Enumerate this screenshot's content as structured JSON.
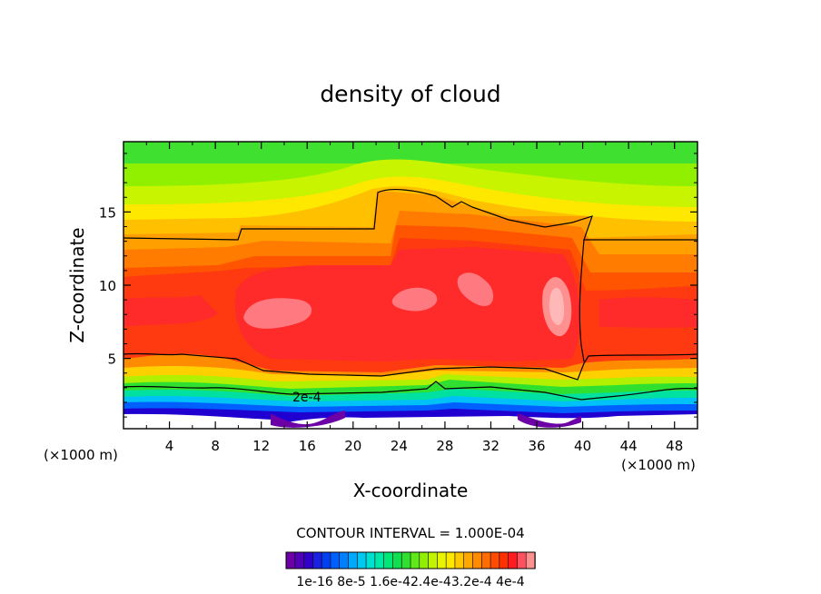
{
  "chart_data": {
    "type": "heatmap",
    "title": "density of cloud",
    "xlabel": "X-coordinate",
    "ylabel": "Z-coordinate",
    "x_unit_label": "(×1000 m)",
    "x_unit_label_right": "(×1000 m)",
    "xlim": [
      0,
      50
    ],
    "ylim": [
      0.2,
      19.8
    ],
    "x_ticks": [
      4,
      8,
      12,
      16,
      20,
      24,
      28,
      32,
      36,
      40,
      44,
      48
    ],
    "y_ticks": [
      5,
      10,
      15
    ],
    "contour_interval_text": "CONTOUR INTERVAL = 1.000E-04",
    "contour_line_label": "2e-4",
    "colorbar": {
      "tick_labels": [
        "1e-16",
        "8e-5",
        "1.6e-4",
        "2.4e-4",
        "3.2e-4",
        "4e-4"
      ],
      "label_text": "1e-16 8e-5 1.6e-42.4e-43.2e-4 4e-4",
      "colors": [
        "#6c00a6",
        "#5200b8",
        "#3000c8",
        "#1c20e0",
        "#0040f0",
        "#0060ff",
        "#0080ff",
        "#00a8ff",
        "#00c8f0",
        "#00e0d0",
        "#00e8a8",
        "#00e878",
        "#10e050",
        "#30e030",
        "#60e818",
        "#90f000",
        "#c0f400",
        "#e8f400",
        "#ffe800",
        "#ffc800",
        "#ffa800",
        "#ff8c00",
        "#ff6c00",
        "#ff4c00",
        "#ff3000",
        "#ff1c20",
        "#ff5060",
        "#ff9090"
      ]
    },
    "regions": [
      {
        "band": "green top",
        "z_range": [
          17,
          19.8
        ],
        "value_approx": 0.0001
      },
      {
        "band": "yellow",
        "z_range": [
          14,
          17
        ],
        "value_approx": 0.00017
      },
      {
        "band": "orange",
        "z_range": [
          12.5,
          14
        ],
        "value_approx": 0.00022
      },
      {
        "band": "red core",
        "x_range": [
          10,
          40
        ],
        "z_range": [
          4,
          13.5
        ],
        "value_approx": 0.0003
      },
      {
        "band": "pink maxima",
        "x_range": [
          10,
          40
        ],
        "z_range": [
          6.5,
          10.5
        ],
        "value_approx": 0.00036
      },
      {
        "band": "blue/purple base",
        "z_range": [
          0.2,
          2
        ],
        "value_approx": 3e-05
      }
    ]
  }
}
